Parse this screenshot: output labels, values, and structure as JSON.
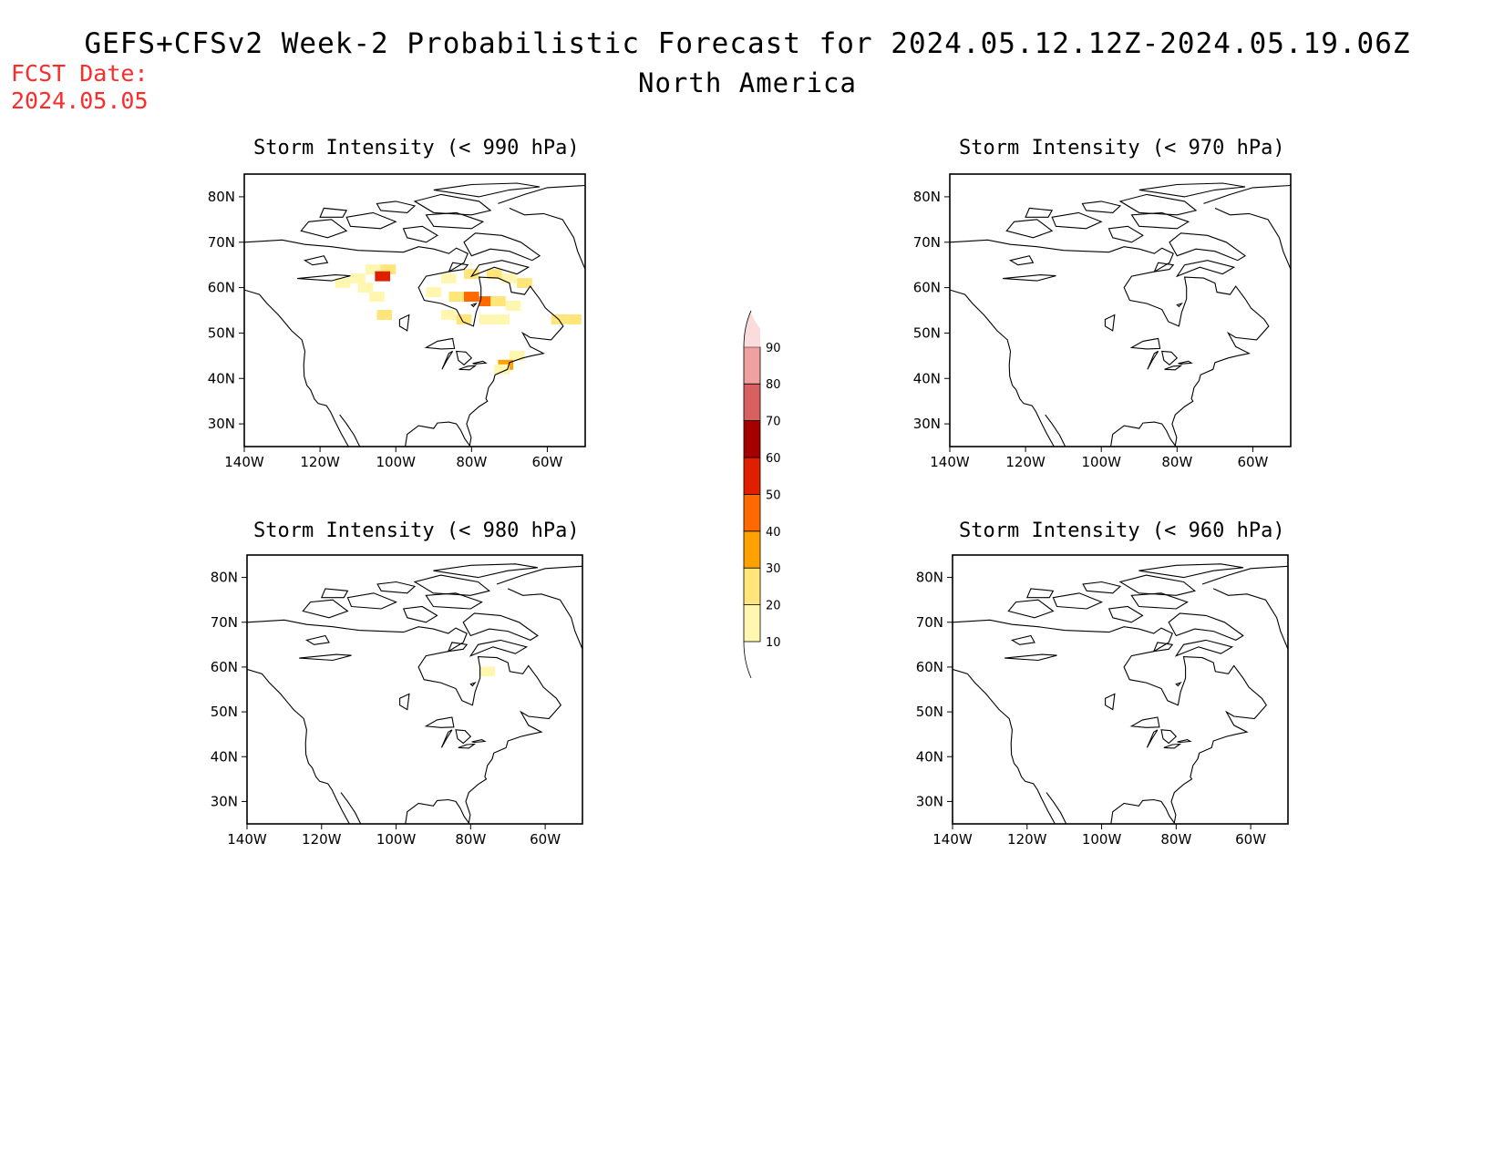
{
  "title": "GEFS+CFSv2 Week-2 Probabilistic Forecast for 2024.05.12.12Z-2024.05.19.06Z",
  "subtitle": "North America",
  "fcst_label": "FCST Date:",
  "fcst_date": "2024.05.05",
  "colors": {
    "c10": "#fff6b0",
    "c20": "#ffe57a",
    "c30": "#ffa200",
    "c40": "#ff6a00",
    "c50": "#e01e00",
    "c60": "#a50000",
    "c70": "#d96060",
    "c80": "#f0a0a0",
    "c90": "#fbdcdc",
    "coastline": "#000000",
    "fcst_text": "#ff2a2a"
  },
  "panels": [
    {
      "title": "Storm Intensity (< 990 hPa)"
    },
    {
      "title": "Storm Intensity (< 970 hPa)"
    },
    {
      "title": "Storm Intensity (< 980 hPa)"
    },
    {
      "title": "Storm Intensity (< 960 hPa)"
    }
  ],
  "axes": {
    "lat_ticks": [
      "80N",
      "70N",
      "60N",
      "50N",
      "40N",
      "30N"
    ],
    "lon_ticks": [
      "140W",
      "120W",
      "100W",
      "80W",
      "60W"
    ],
    "lat_values": [
      80,
      70,
      60,
      50,
      40,
      30
    ],
    "lon_values": [
      -140,
      -120,
      -100,
      -80,
      -60
    ],
    "lat_range": [
      25,
      85
    ],
    "lon_range": [
      -140,
      -50
    ]
  },
  "colorbar": {
    "levels": [
      "10",
      "20",
      "30",
      "40",
      "50",
      "60",
      "70",
      "80",
      "90"
    ],
    "unit_hint": "probability (%)"
  },
  "chart_data": {
    "type": "heatmap",
    "fields": [
      {
        "panel": 0,
        "cells": [
          {
            "lon": -106,
            "lat": 64,
            "level": 10
          },
          {
            "lon": -102,
            "lat": 64,
            "level": 20
          },
          {
            "lon": -103.5,
            "lat": 62.5,
            "level": 50
          },
          {
            "lon": -110,
            "lat": 62,
            "level": 10
          },
          {
            "lon": -114,
            "lat": 61,
            "level": 10
          },
          {
            "lon": -108,
            "lat": 60,
            "level": 10
          },
          {
            "lon": -105,
            "lat": 58,
            "level": 10
          },
          {
            "lon": -103,
            "lat": 54,
            "level": 20
          },
          {
            "lon": -86,
            "lat": 62,
            "level": 10
          },
          {
            "lon": -80,
            "lat": 63,
            "level": 20
          },
          {
            "lon": -74,
            "lat": 63,
            "level": 20
          },
          {
            "lon": -70,
            "lat": 62,
            "level": 10
          },
          {
            "lon": -66,
            "lat": 61,
            "level": 20
          },
          {
            "lon": -90,
            "lat": 59,
            "level": 10
          },
          {
            "lon": -84,
            "lat": 58,
            "level": 20
          },
          {
            "lon": -80,
            "lat": 58,
            "level": 40
          },
          {
            "lon": -76,
            "lat": 57,
            "level": 40
          },
          {
            "lon": -73,
            "lat": 57,
            "level": 20
          },
          {
            "lon": -69,
            "lat": 56,
            "level": 10
          },
          {
            "lon": -86,
            "lat": 54,
            "level": 10
          },
          {
            "lon": -82,
            "lat": 53,
            "level": 20
          },
          {
            "lon": -76,
            "lat": 53,
            "level": 10
          },
          {
            "lon": -72,
            "lat": 53,
            "level": 10
          },
          {
            "lon": -57,
            "lat": 53,
            "level": 20
          },
          {
            "lon": -53,
            "lat": 53,
            "level": 20
          },
          {
            "lon": -68,
            "lat": 45,
            "level": 10
          },
          {
            "lon": -71,
            "lat": 43,
            "level": 30
          },
          {
            "lon": -72,
            "lat": 42,
            "level": 10
          }
        ]
      },
      {
        "panel": 1,
        "cells": []
      },
      {
        "panel": 2,
        "cells": [
          {
            "lon": -75.5,
            "lat": 59,
            "level": 10
          }
        ]
      },
      {
        "panel": 3,
        "cells": []
      }
    ]
  }
}
